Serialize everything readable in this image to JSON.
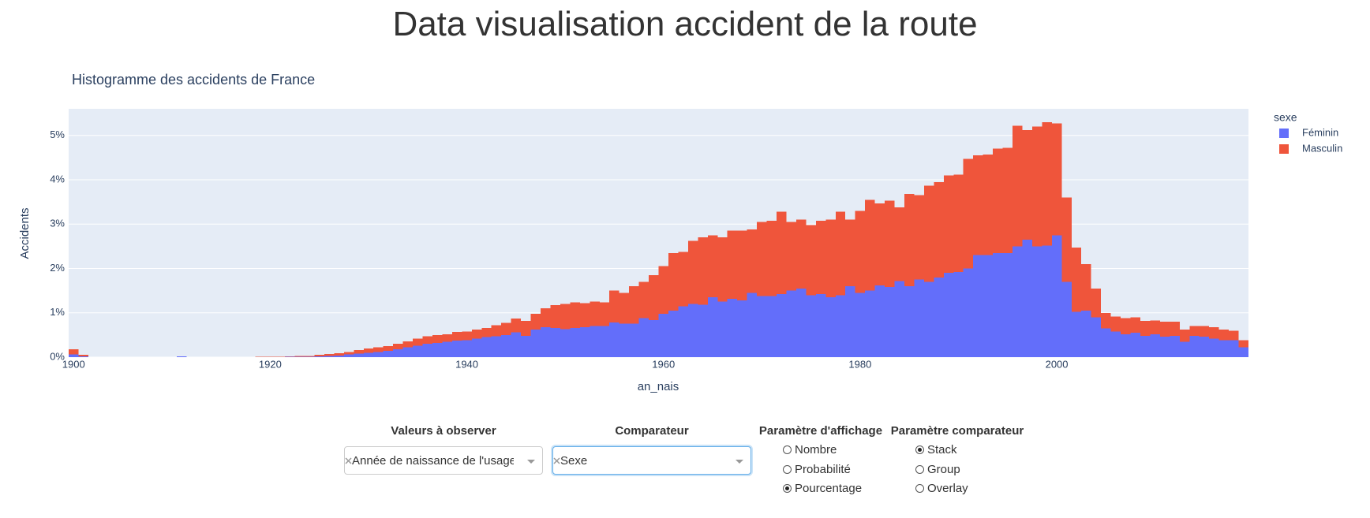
{
  "title": "Data visualisation accident de la route",
  "chart_data": {
    "type": "histogram",
    "barmode": "stack",
    "title": "Histogramme des accidents de France",
    "xlabel": "an_nais",
    "ylabel": "Accidents",
    "legend_title": "sexe",
    "legend": "right",
    "grid": "y",
    "xlim": [
      1899.5,
      2019.5
    ],
    "xticks": [
      1900,
      1920,
      1940,
      1960,
      1980,
      2000
    ],
    "ylim": [
      0,
      5.6
    ],
    "yticks": [
      {
        "value": 0,
        "label": "0%"
      },
      {
        "value": 1,
        "label": "1%"
      },
      {
        "value": 2,
        "label": "2%"
      },
      {
        "value": 3,
        "label": "3%"
      },
      {
        "value": 4,
        "label": "4%"
      },
      {
        "value": 5,
        "label": "5%"
      }
    ],
    "bins": [
      1899.5,
      1900.5,
      1901.5,
      1902.5,
      1903.5,
      1904.5,
      1905.5,
      1906.5,
      1907.5,
      1908.5,
      1909.5,
      1910.5,
      1911.5,
      1912.5,
      1913.5,
      1914.5,
      1915.5,
      1916.5,
      1917.5,
      1918.5,
      1919.5,
      1920.5,
      1921.5,
      1922.5,
      1923.5,
      1924.5,
      1925.5,
      1926.5,
      1927.5,
      1928.5,
      1929.5,
      1930.5,
      1931.5,
      1932.5,
      1933.5,
      1934.5,
      1935.5,
      1936.5,
      1937.5,
      1938.5,
      1939.5,
      1940.5,
      1941.5,
      1942.5,
      1943.5,
      1944.5,
      1945.5,
      1946.5,
      1947.5,
      1948.5,
      1949.5,
      1950.5,
      1951.5,
      1952.5,
      1953.5,
      1954.5,
      1955.5,
      1956.5,
      1957.5,
      1958.5,
      1959.5,
      1960.5,
      1961.5,
      1962.5,
      1963.5,
      1964.5,
      1965.5,
      1966.5,
      1967.5,
      1968.5,
      1969.5,
      1970.5,
      1971.5,
      1972.5,
      1973.5,
      1974.5,
      1975.5,
      1976.5,
      1977.5,
      1978.5,
      1979.5,
      1980.5,
      1981.5,
      1982.5,
      1983.5,
      1984.5,
      1985.5,
      1986.5,
      1987.5,
      1988.5,
      1989.5,
      1990.5,
      1991.5,
      1992.5,
      1993.5,
      1994.5,
      1995.5,
      1996.5,
      1997.5,
      1998.5,
      1999.5,
      2000.5,
      2001.5,
      2002.5,
      2003.5,
      2004.5,
      2005.5,
      2006.5,
      2007.5,
      2008.5,
      2009.5,
      2010.5,
      2011.5,
      2012.5,
      2013.5,
      2014.5,
      2015.5,
      2016.5,
      2017.5,
      2018.5,
      2019.5
    ],
    "series": [
      {
        "name": "Féminin",
        "color": "#636efa",
        "values": [
          0.06,
          0.02,
          0,
          0,
          0,
          0,
          0,
          0,
          0,
          0,
          0,
          0.02,
          0,
          0,
          0,
          0,
          0,
          0,
          0,
          0,
          0,
          0,
          0.01,
          0.01,
          0.01,
          0.02,
          0.03,
          0.04,
          0.06,
          0.08,
          0.1,
          0.12,
          0.14,
          0.18,
          0.22,
          0.26,
          0.3,
          0.32,
          0.35,
          0.37,
          0.38,
          0.42,
          0.45,
          0.47,
          0.5,
          0.56,
          0.48,
          0.62,
          0.68,
          0.66,
          0.63,
          0.66,
          0.68,
          0.7,
          0.7,
          0.78,
          0.76,
          0.76,
          0.88,
          0.84,
          0.98,
          1.05,
          1.15,
          1.2,
          1.18,
          1.35,
          1.25,
          1.32,
          1.28,
          1.45,
          1.38,
          1.38,
          1.42,
          1.5,
          1.55,
          1.4,
          1.42,
          1.35,
          1.4,
          1.6,
          1.45,
          1.5,
          1.62,
          1.58,
          1.72,
          1.6,
          1.75,
          1.7,
          1.8,
          1.9,
          1.92,
          2.0,
          2.3,
          2.3,
          2.35,
          2.35,
          2.5,
          2.65,
          2.5,
          2.52,
          2.75,
          1.7,
          1.02,
          1.05,
          0.9,
          0.65,
          0.58,
          0.52,
          0.55,
          0.48,
          0.52,
          0.46,
          0.48,
          0.35,
          0.48,
          0.46,
          0.42,
          0.38,
          0.38,
          0.22
        ]
      },
      {
        "name": "Masculin",
        "color": "#ef553b",
        "values": [
          0.12,
          0.03,
          0,
          0,
          0,
          0,
          0,
          0,
          0,
          0,
          0,
          0,
          0,
          0,
          0,
          0,
          0,
          0,
          0,
          0.01,
          0.01,
          0.01,
          0.01,
          0.02,
          0.02,
          0.03,
          0.04,
          0.05,
          0.06,
          0.08,
          0.1,
          0.1,
          0.11,
          0.12,
          0.14,
          0.16,
          0.17,
          0.18,
          0.17,
          0.2,
          0.2,
          0.2,
          0.21,
          0.25,
          0.27,
          0.31,
          0.34,
          0.36,
          0.42,
          0.51,
          0.57,
          0.58,
          0.54,
          0.55,
          0.54,
          0.72,
          0.69,
          0.84,
          0.82,
          1.01,
          1.07,
          1.3,
          1.22,
          1.42,
          1.52,
          1.4,
          1.45,
          1.53,
          1.57,
          1.43,
          1.67,
          1.7,
          1.86,
          1.55,
          1.55,
          1.58,
          1.66,
          1.75,
          1.88,
          1.5,
          1.85,
          2.05,
          1.85,
          1.95,
          1.66,
          2.08,
          1.9,
          2.17,
          2.15,
          2.2,
          2.2,
          2.47,
          2.25,
          2.27,
          2.35,
          2.37,
          2.72,
          2.47,
          2.7,
          2.78,
          2.52,
          1.9,
          1.45,
          1.05,
          0.65,
          0.35,
          0.34,
          0.36,
          0.35,
          0.34,
          0.31,
          0.34,
          0.32,
          0.27,
          0.22,
          0.24,
          0.26,
          0.24,
          0.22,
          0.16
        ]
      }
    ]
  },
  "controls": [
    {
      "label": "Valeurs à observer",
      "type": "dropdown",
      "value": "Année de naissance de l'usager",
      "clearable": true
    },
    {
      "label": "Comparateur",
      "type": "dropdown",
      "value": "Sexe",
      "clearable": true,
      "focused": true
    },
    {
      "label": "Paramètre d'affichage",
      "type": "radio",
      "options": [
        "Nombre",
        "Probabilité",
        "Pourcentage"
      ],
      "selected": 2
    },
    {
      "label": "Paramètre comparateur",
      "type": "radio",
      "options": [
        "Stack",
        "Group",
        "Overlay"
      ],
      "selected": 0
    }
  ]
}
